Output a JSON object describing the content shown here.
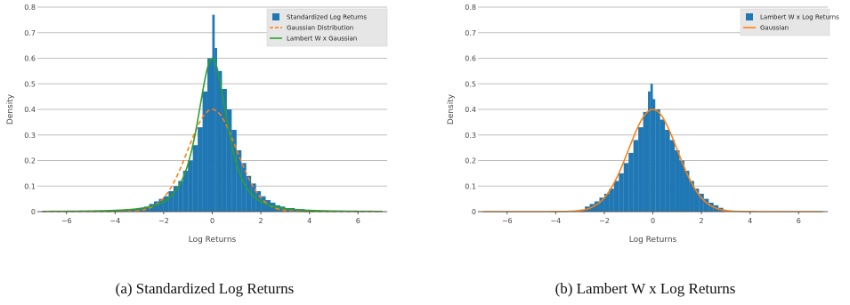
{
  "colors": {
    "bars": "#1f77b4",
    "gaussian": "#ff7f0e",
    "lambert": "#2ca02c",
    "grid": "#bfbfbf",
    "legend_bg": "#e6e6e6"
  },
  "captions": {
    "a": "(a) Standardized Log Returns",
    "b": "(b) Lambert W x Log Returns"
  },
  "chart_data": [
    {
      "type": "bar",
      "panel": "a",
      "xlabel": "Log Returns",
      "ylabel": "Density",
      "xlim": [
        -7.2,
        7.2
      ],
      "ylim": [
        0,
        0.8
      ],
      "xticks": [
        -6,
        -4,
        -2,
        0,
        2,
        4,
        6
      ],
      "xtick_labels": [
        "−6",
        "−4",
        "−2",
        "0",
        "2",
        "4",
        "6"
      ],
      "yticks": [
        0,
        0.1,
        0.2,
        0.3,
        0.4,
        0.5,
        0.6,
        0.7,
        0.8
      ],
      "ytick_labels": [
        "0",
        "0.1",
        "0.2",
        "0.3",
        "0.4",
        "0.5",
        "0.6",
        "0.7",
        "0.8"
      ],
      "grid": true,
      "legend_position": "top-right",
      "histogram": {
        "name": "Standardized Log Returns",
        "bins": [
          [
            -4.0,
            -3.8,
            0.004
          ],
          [
            -3.8,
            -3.6,
            0.006
          ],
          [
            -3.6,
            -3.4,
            0.005
          ],
          [
            -3.4,
            -3.2,
            0.008
          ],
          [
            -3.2,
            -3.0,
            0.01
          ],
          [
            -3.0,
            -2.8,
            0.015
          ],
          [
            -2.8,
            -2.6,
            0.02
          ],
          [
            -2.6,
            -2.4,
            0.03
          ],
          [
            -2.4,
            -2.2,
            0.04
          ],
          [
            -2.2,
            -2.0,
            0.05
          ],
          [
            -2.0,
            -1.8,
            0.06
          ],
          [
            -1.8,
            -1.6,
            0.08
          ],
          [
            -1.6,
            -1.4,
            0.1
          ],
          [
            -1.4,
            -1.2,
            0.12
          ],
          [
            -1.2,
            -1.0,
            0.16
          ],
          [
            -1.0,
            -0.8,
            0.2
          ],
          [
            -0.8,
            -0.6,
            0.26
          ],
          [
            -0.6,
            -0.4,
            0.33
          ],
          [
            -0.4,
            -0.2,
            0.47
          ],
          [
            -0.2,
            0.0,
            0.6
          ],
          [
            0.0,
            0.1,
            0.77
          ],
          [
            0.1,
            0.2,
            0.64
          ],
          [
            0.2,
            0.4,
            0.55
          ],
          [
            0.4,
            0.6,
            0.48
          ],
          [
            0.6,
            0.8,
            0.4
          ],
          [
            0.8,
            1.0,
            0.32
          ],
          [
            1.0,
            1.2,
            0.24
          ],
          [
            1.2,
            1.4,
            0.19
          ],
          [
            1.4,
            1.6,
            0.14
          ],
          [
            1.6,
            1.8,
            0.11
          ],
          [
            1.8,
            2.0,
            0.08
          ],
          [
            2.0,
            2.2,
            0.06
          ],
          [
            2.2,
            2.4,
            0.045
          ],
          [
            2.4,
            2.6,
            0.035
          ],
          [
            2.6,
            2.8,
            0.025
          ],
          [
            2.8,
            3.0,
            0.02
          ],
          [
            3.0,
            3.4,
            0.014
          ],
          [
            3.4,
            3.8,
            0.01
          ],
          [
            3.8,
            4.2,
            0.007
          ],
          [
            4.2,
            4.6,
            0.005
          ],
          [
            4.6,
            5.0,
            0.004
          ],
          [
            5.0,
            5.2,
            0.003
          ]
        ]
      },
      "lines": [
        {
          "name": "Gaussian Distribution",
          "dashed": true,
          "kind": "normal",
          "mu": 0,
          "sigma": 1,
          "peak": 0.4
        },
        {
          "name": "Lambert W x Gaussian",
          "dashed": false,
          "kind": "heavy",
          "peak": 0.6
        }
      ]
    },
    {
      "type": "bar",
      "panel": "b",
      "xlabel": "Log Returns",
      "ylabel": "Density",
      "xlim": [
        -7.2,
        7.2
      ],
      "ylim": [
        0,
        0.8
      ],
      "xticks": [
        -6,
        -4,
        -2,
        0,
        2,
        4,
        6
      ],
      "xtick_labels": [
        "−6",
        "−4",
        "−2",
        "0",
        "2",
        "4",
        "6"
      ],
      "yticks": [
        0,
        0.1,
        0.2,
        0.3,
        0.4,
        0.5,
        0.6,
        0.7,
        0.8
      ],
      "ytick_labels": [
        "0",
        "0.1",
        "0.2",
        "0.3",
        "0.4",
        "0.5",
        "0.6",
        "0.7",
        "0.8"
      ],
      "grid": true,
      "legend_position": "top-right",
      "histogram": {
        "name": "Lambert W x Log Returns",
        "bins": [
          [
            -3.0,
            -2.8,
            0.008
          ],
          [
            -2.8,
            -2.6,
            0.02
          ],
          [
            -2.6,
            -2.4,
            0.03
          ],
          [
            -2.4,
            -2.2,
            0.04
          ],
          [
            -2.2,
            -2.0,
            0.055
          ],
          [
            -2.0,
            -1.8,
            0.07
          ],
          [
            -1.8,
            -1.6,
            0.09
          ],
          [
            -1.6,
            -1.4,
            0.12
          ],
          [
            -1.4,
            -1.2,
            0.15
          ],
          [
            -1.2,
            -1.0,
            0.19
          ],
          [
            -1.0,
            -0.8,
            0.23
          ],
          [
            -0.8,
            -0.6,
            0.28
          ],
          [
            -0.6,
            -0.4,
            0.33
          ],
          [
            -0.4,
            -0.2,
            0.39
          ],
          [
            -0.2,
            -0.1,
            0.47
          ],
          [
            -0.1,
            0.0,
            0.5
          ],
          [
            0.0,
            0.1,
            0.44
          ],
          [
            0.1,
            0.3,
            0.4
          ],
          [
            0.3,
            0.5,
            0.36
          ],
          [
            0.5,
            0.7,
            0.32
          ],
          [
            0.7,
            0.9,
            0.28
          ],
          [
            0.9,
            1.1,
            0.24
          ],
          [
            1.1,
            1.3,
            0.2
          ],
          [
            1.3,
            1.5,
            0.16
          ],
          [
            1.5,
            1.7,
            0.12
          ],
          [
            1.7,
            1.9,
            0.09
          ],
          [
            1.9,
            2.1,
            0.07
          ],
          [
            2.1,
            2.3,
            0.05
          ],
          [
            2.3,
            2.5,
            0.035
          ],
          [
            2.5,
            2.7,
            0.025
          ],
          [
            2.7,
            2.9,
            0.015
          ],
          [
            2.9,
            3.0,
            0.008
          ]
        ]
      },
      "lines": [
        {
          "name": "Gaussian",
          "dashed": false,
          "kind": "normal",
          "mu": 0,
          "sigma": 1,
          "peak": 0.4
        }
      ]
    }
  ]
}
